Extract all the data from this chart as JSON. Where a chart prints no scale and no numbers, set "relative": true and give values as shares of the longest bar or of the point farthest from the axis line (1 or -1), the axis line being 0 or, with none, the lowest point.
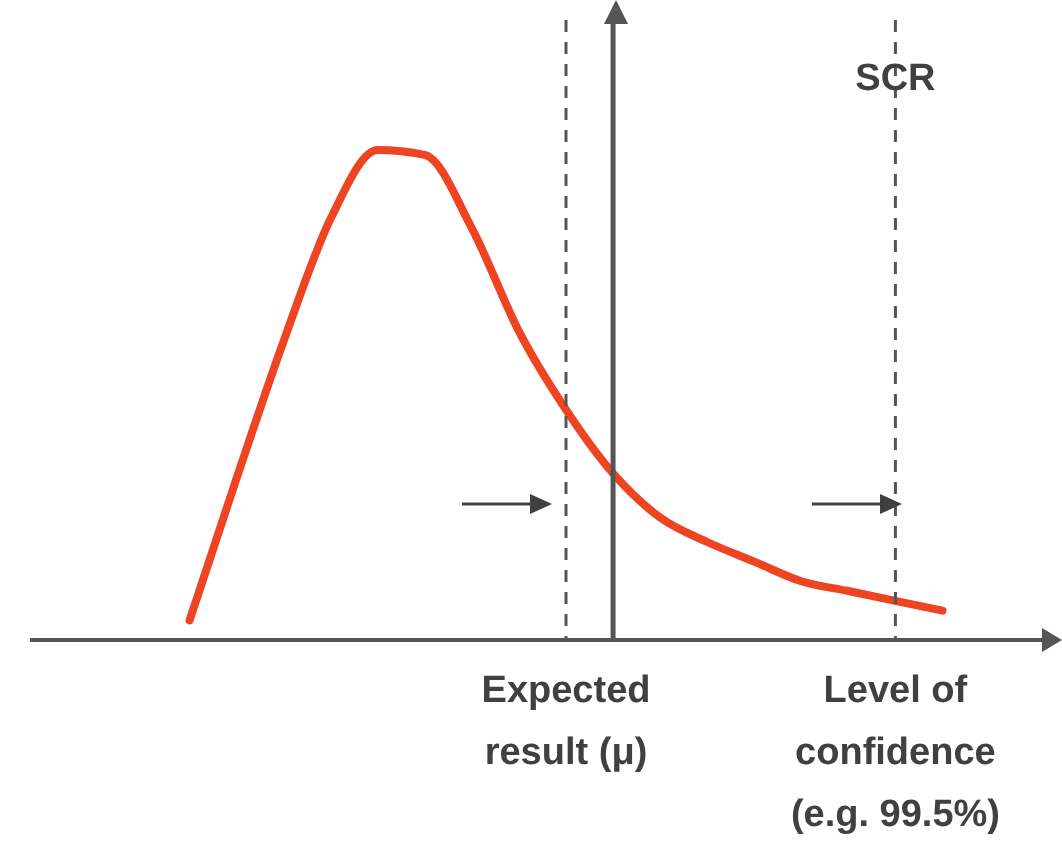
{
  "chart_data": {
    "type": "line",
    "categories": [
      null,
      null,
      null,
      null,
      null,
      null,
      null,
      null,
      null,
      null,
      null,
      null,
      null,
      null,
      null,
      null,
      null
    ],
    "relative": true,
    "series": [
      {
        "color": "#ee4422",
        "values": [
          0.04,
          0.33,
          0.61,
          0.86,
          1,
          0.99,
          0.84,
          0.63,
          0.47,
          0.34,
          0.25,
          0.2,
          0.16,
          0.12,
          0.1,
          0.08,
          0.06
        ]
      }
    ],
    "annotations": [
      "Expected result (μ)",
      "SCR",
      "Level of confidence (e.g. 99.5%)"
    ]
  }
}
